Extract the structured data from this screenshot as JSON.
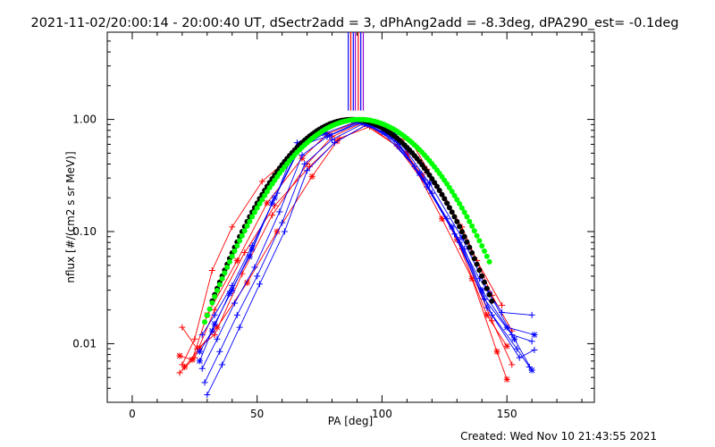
{
  "chart_data": {
    "type": "scatter",
    "title": "2021-11-02/20:00:14 - 20:00:40 UT, dSectr2add = 3, dPhAng2add = -8.3deg, dPA290_est= -0.1deg",
    "xlabel": "PA [deg]",
    "ylabel": "nflux [#/(cm2 s sr MeV)]",
    "xlim": [
      -10,
      185
    ],
    "ylim": [
      0.003,
      6
    ],
    "yscale": "log",
    "xticks": [
      0,
      50,
      100,
      150
    ],
    "xtick_labels": [
      "0",
      "50",
      "100",
      "150"
    ],
    "yticks": [
      0.01,
      0.1,
      1
    ],
    "ytick_labels": [
      "0.01",
      "0.10",
      "1.00"
    ],
    "footer": "Created: Wed Nov 10 21:43:55 2021",
    "colors": {
      "red": "#ff0000",
      "blue": "#0000ff",
      "black": "#000000",
      "green": "#00ff00",
      "purple": "#9900cc"
    },
    "vertical_markers": [
      {
        "x": 86.5,
        "color": "#0000ff"
      },
      {
        "x": 87.5,
        "color": "#ff0000"
      },
      {
        "x": 88.5,
        "color": "#0000ff"
      },
      {
        "x": 89.3,
        "color": "#9900cc"
      },
      {
        "x": 90.5,
        "color": "#ff0000"
      },
      {
        "x": 91.5,
        "color": "#0000ff"
      },
      {
        "x": 92.5,
        "color": "#9900cc"
      }
    ],
    "marker_range": [
      1.2,
      6
    ],
    "fit_curves": [
      {
        "name": "fit-black",
        "color": "#000000",
        "center": 88,
        "sigma": 20.5,
        "xrange": [
          32,
          144
        ]
      },
      {
        "name": "fit-green",
        "color": "#00ff00",
        "center": 91,
        "sigma": 21.5,
        "xrange": [
          29,
          143
        ]
      }
    ],
    "series": [
      {
        "name": "red-1",
        "color": "#ff0000",
        "marker": "+",
        "x": [
          20,
          25,
          32,
          40,
          52,
          66,
          76,
          88,
          104,
          118,
          132,
          144,
          152
        ],
        "y": [
          0.0065,
          0.011,
          0.045,
          0.11,
          0.28,
          0.52,
          0.82,
          0.97,
          0.72,
          0.36,
          0.11,
          0.027,
          0.013
        ]
      },
      {
        "name": "red-2",
        "color": "#ff0000",
        "marker": "*",
        "x": [
          19,
          24,
          30,
          42,
          54,
          68,
          78,
          90,
          103,
          116,
          130,
          142,
          150
        ],
        "y": [
          0.0078,
          0.0072,
          0.018,
          0.055,
          0.18,
          0.45,
          0.74,
          0.95,
          0.78,
          0.32,
          0.085,
          0.018,
          0.0095
        ]
      },
      {
        "name": "red-3",
        "color": "#ff0000",
        "marker": "+",
        "x": [
          20,
          26,
          33,
          44,
          56,
          70,
          80,
          92,
          106,
          120,
          132,
          144,
          152
        ],
        "y": [
          0.014,
          0.009,
          0.012,
          0.042,
          0.14,
          0.4,
          0.7,
          0.93,
          0.58,
          0.22,
          0.07,
          0.016,
          0.0065
        ]
      },
      {
        "name": "red-4",
        "color": "#ff0000",
        "marker": "*",
        "x": [
          21,
          27,
          34,
          46,
          58,
          72,
          82,
          94,
          110,
          124,
          136,
          146,
          150
        ],
        "y": [
          0.0062,
          0.0092,
          0.014,
          0.035,
          0.1,
          0.31,
          0.64,
          0.9,
          0.5,
          0.13,
          0.038,
          0.0085,
          0.0048
        ]
      },
      {
        "name": "red-5",
        "color": "#ff0000",
        "marker": "+",
        "x": [
          19,
          25,
          33,
          45,
          57,
          71,
          83,
          95,
          112,
          126,
          138,
          148
        ],
        "y": [
          0.0055,
          0.0075,
          0.02,
          0.065,
          0.17,
          0.38,
          0.68,
          0.86,
          0.62,
          0.18,
          0.055,
          0.022
        ]
      },
      {
        "name": "blue-1",
        "color": "#0000ff",
        "marker": "+",
        "x": [
          28,
          33,
          40,
          48,
          58,
          66,
          76,
          88,
          100,
          113,
          126,
          139,
          148,
          160
        ],
        "y": [
          0.012,
          0.018,
          0.033,
          0.075,
          0.22,
          0.62,
          0.8,
          0.97,
          0.78,
          0.38,
          0.13,
          0.038,
          0.019,
          0.018
        ]
      },
      {
        "name": "blue-2",
        "color": "#0000ff",
        "marker": "*",
        "x": [
          27,
          32,
          39,
          47,
          56,
          67,
          77,
          90,
          102,
          115,
          128,
          140,
          150,
          161
        ],
        "y": [
          0.0085,
          0.013,
          0.028,
          0.06,
          0.18,
          0.55,
          0.75,
          0.96,
          0.75,
          0.33,
          0.11,
          0.03,
          0.014,
          0.012
        ]
      },
      {
        "name": "blue-3",
        "color": "#0000ff",
        "marker": "+",
        "x": [
          28,
          34,
          41,
          49,
          59,
          68,
          78,
          92,
          104,
          117,
          129,
          141,
          152,
          160
        ],
        "y": [
          0.006,
          0.011,
          0.023,
          0.048,
          0.15,
          0.48,
          0.7,
          0.95,
          0.7,
          0.29,
          0.095,
          0.025,
          0.012,
          0.0105
        ]
      },
      {
        "name": "blue-4",
        "color": "#0000ff",
        "marker": "+",
        "x": [
          29,
          35,
          42,
          50,
          60,
          69,
          80,
          93,
          106,
          118,
          131,
          142,
          154,
          159
        ],
        "y": [
          0.0045,
          0.0085,
          0.018,
          0.04,
          0.12,
          0.4,
          0.66,
          0.93,
          0.64,
          0.25,
          0.08,
          0.021,
          0.009,
          0.0062
        ]
      },
      {
        "name": "blue-5",
        "color": "#0000ff",
        "marker": "*",
        "x": [
          27,
          33,
          40,
          48,
          57,
          67,
          79,
          91,
          105,
          119,
          132,
          143,
          153,
          160
        ],
        "y": [
          0.007,
          0.015,
          0.03,
          0.07,
          0.2,
          0.58,
          0.72,
          0.96,
          0.73,
          0.27,
          0.088,
          0.028,
          0.011,
          0.0058
        ]
      },
      {
        "name": "blue-6",
        "color": "#0000ff",
        "marker": "+",
        "x": [
          30,
          36,
          43,
          51,
          61,
          70,
          81,
          94,
          107,
          120,
          133,
          144,
          155,
          161
        ],
        "y": [
          0.0035,
          0.0065,
          0.014,
          0.034,
          0.1,
          0.35,
          0.62,
          0.9,
          0.6,
          0.22,
          0.07,
          0.018,
          0.0075,
          0.0088
        ]
      }
    ]
  }
}
